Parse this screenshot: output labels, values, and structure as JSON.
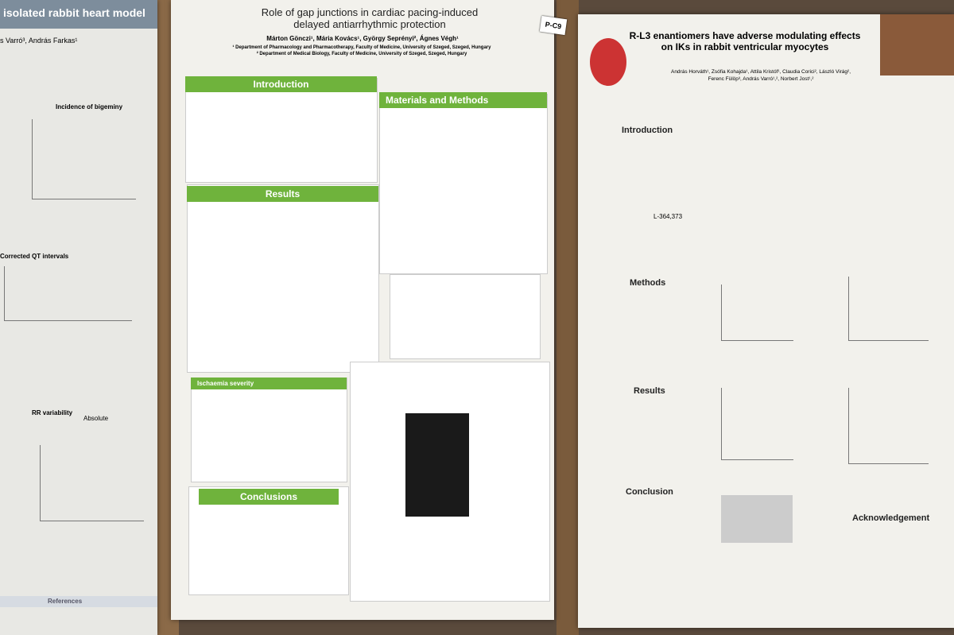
{
  "left_poster": {
    "title": "isolated rabbit heart model",
    "authors": "s Varró³, András Farkas¹",
    "headings": [
      "Incidence of bigeminy",
      "Corrected QT intervals",
      "RR variability",
      "Absolute",
      "References"
    ]
  },
  "center_poster": {
    "label": "P-C9",
    "title": "Role of gap junctions in cardiac pacing-induced delayed antiarrhythmic protection",
    "authors": "Márton Gönczi¹, Mária Kovács¹, György Seprényi², Ágnes Végh¹",
    "affiliations": [
      "¹ Department of Pharmacology and Pharmacotherapy, Faculty of Medicine, University of Szeged, Szeged, Hungary",
      "² Department of Medical Biology, Faculty of Medicine, University of Szeged, Szeged, Hungary"
    ],
    "sections": [
      "Introduction",
      "Materials and Methods",
      "Results",
      "Ischaemia severity",
      "Conclusions"
    ]
  },
  "right_poster": {
    "title": "R-L3 enantiomers have adverse modulating effects on IKs in rabbit ventricular myocytes",
    "authors": [
      "András Horváth¹, Zsófia Kohajda¹, Attila Kristóf¹, Claudia Corici², László Virág²,",
      "Ferenc Fülöp³, András Varró¹,², Norbert Jost¹,²"
    ],
    "sections": [
      "Introduction",
      "Methods",
      "Results",
      "Conclusion",
      "Acknowledgement"
    ],
    "compound": "L-364,373"
  }
}
